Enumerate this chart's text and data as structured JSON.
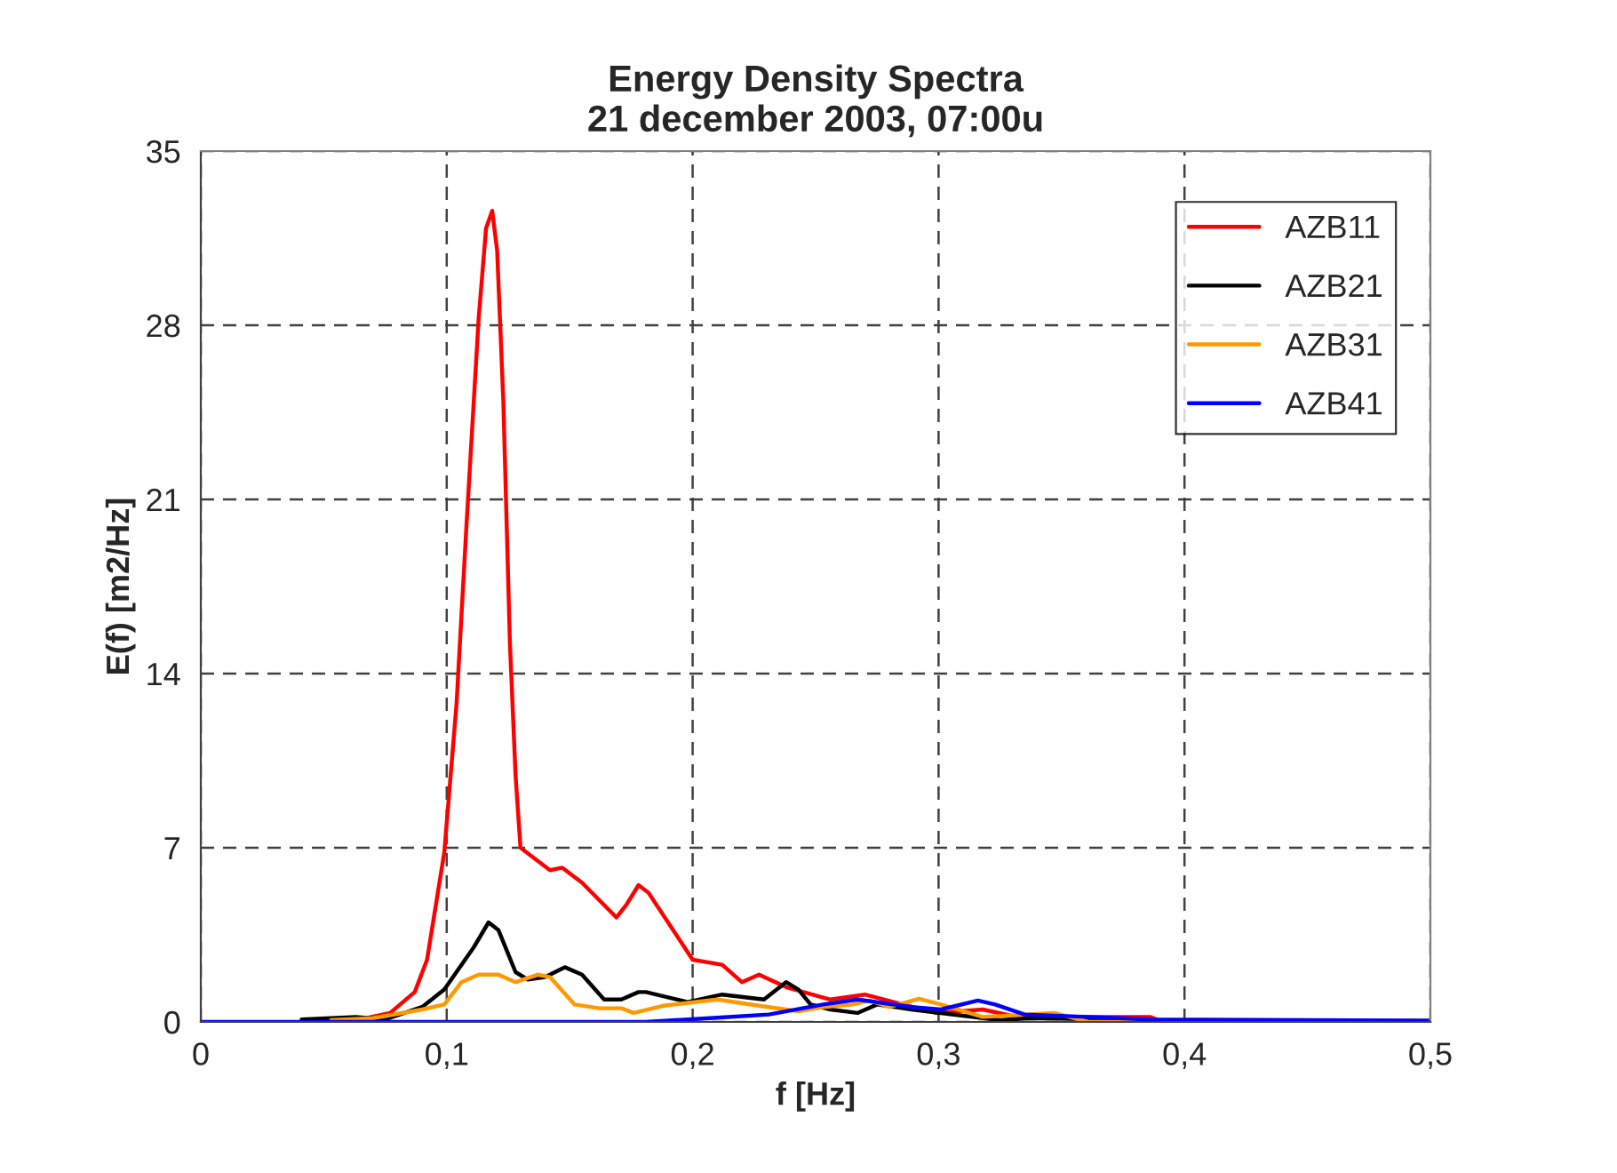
{
  "chart_data": {
    "type": "line",
    "title": "Energy Density Spectra\n21 december 2003, 07:00u",
    "xlabel": "f [Hz]",
    "ylabel": "E(f) [m2/Hz]",
    "xlim": [
      0,
      0.5
    ],
    "ylim": [
      0,
      35
    ],
    "xticks": [
      0,
      {
        "value": 0.1,
        "label": "0,1"
      },
      {
        "value": 0.2,
        "label": "0,2"
      },
      {
        "value": 0.3,
        "label": "0,3"
      },
      {
        "value": 0.4,
        "label": "0,4"
      },
      {
        "value": 0.5,
        "label": "0,5"
      }
    ],
    "yticks": [
      0,
      7,
      14,
      21,
      28,
      35
    ],
    "grid": true,
    "legend": "top right",
    "line_style": "solid",
    "marker": "none",
    "series": [
      {
        "name": "AZB11",
        "color": "#ff0000",
        "x": [
          0.06,
          0.077,
          0.087,
          0.092,
          0.099,
          0.104,
          0.108,
          0.113,
          0.116,
          0.1185,
          0.1205,
          0.123,
          0.1257,
          0.128,
          0.13,
          0.142,
          0.147,
          0.155,
          0.169,
          0.173,
          0.178,
          0.182,
          0.2,
          0.212,
          0.22,
          0.227,
          0.238,
          0.256,
          0.27,
          0.299,
          0.318,
          0.332,
          0.386,
          0.39,
          0.4
        ],
        "values": [
          0,
          0.36,
          1.2,
          2.5,
          6.8,
          12.8,
          19.9,
          28.3,
          31.9,
          32.6,
          31,
          25,
          15.2,
          9.9,
          7.0,
          6.1,
          6.2,
          5.6,
          4.2,
          4.7,
          5.5,
          5.2,
          2.5,
          2.3,
          1.6,
          1.9,
          1.4,
          0.9,
          1.1,
          0.36,
          0.5,
          0.2,
          0.2,
          0.05,
          0
        ]
      },
      {
        "name": "AZB21",
        "color": "#000000",
        "x": [
          0.041,
          0.063,
          0.075,
          0.09,
          0.099,
          0.111,
          0.117,
          0.121,
          0.128,
          0.133,
          0.14,
          0.148,
          0.155,
          0.164,
          0.171,
          0.178,
          0.181,
          0.198,
          0.212,
          0.229,
          0.238,
          0.243,
          0.248,
          0.256,
          0.267,
          0.275,
          0.289,
          0.325,
          0.337,
          0.4,
          0.5
        ],
        "values": [
          0.1,
          0.2,
          0.1,
          0.6,
          1.3,
          3.0,
          4.0,
          3.7,
          2.0,
          1.7,
          1.8,
          2.2,
          1.9,
          0.9,
          0.9,
          1.2,
          1.2,
          0.8,
          1.1,
          0.9,
          1.6,
          1.3,
          0.7,
          0.5,
          0.36,
          0.7,
          0.5,
          0.07,
          0.15,
          0.05,
          0.05
        ]
      },
      {
        "name": "AZB31",
        "color": "#ff9900",
        "x": [
          0.053,
          0.07,
          0.09,
          0.099,
          0.106,
          0.113,
          0.121,
          0.128,
          0.137,
          0.142,
          0.152,
          0.162,
          0.171,
          0.176,
          0.188,
          0.21,
          0.227,
          0.243,
          0.253,
          0.265,
          0.272,
          0.28,
          0.292,
          0.301,
          0.318,
          0.347,
          0.361,
          0.5
        ],
        "values": [
          0.07,
          0.15,
          0.5,
          0.7,
          1.6,
          1.9,
          1.9,
          1.6,
          1.9,
          1.8,
          0.7,
          0.55,
          0.55,
          0.36,
          0.65,
          0.9,
          0.65,
          0.43,
          0.6,
          0.7,
          0.86,
          0.6,
          0.93,
          0.7,
          0.2,
          0.36,
          0,
          0
        ]
      },
      {
        "name": "AZB41",
        "color": "#0000ff",
        "x": [
          0.0,
          0.181,
          0.207,
          0.231,
          0.253,
          0.267,
          0.289,
          0.301,
          0.316,
          0.323,
          0.335,
          0.361,
          0.386,
          0.5
        ],
        "values": [
          0,
          0,
          0.15,
          0.3,
          0.7,
          0.9,
          0.6,
          0.5,
          0.86,
          0.7,
          0.3,
          0.2,
          0.1,
          0.05
        ]
      }
    ]
  }
}
